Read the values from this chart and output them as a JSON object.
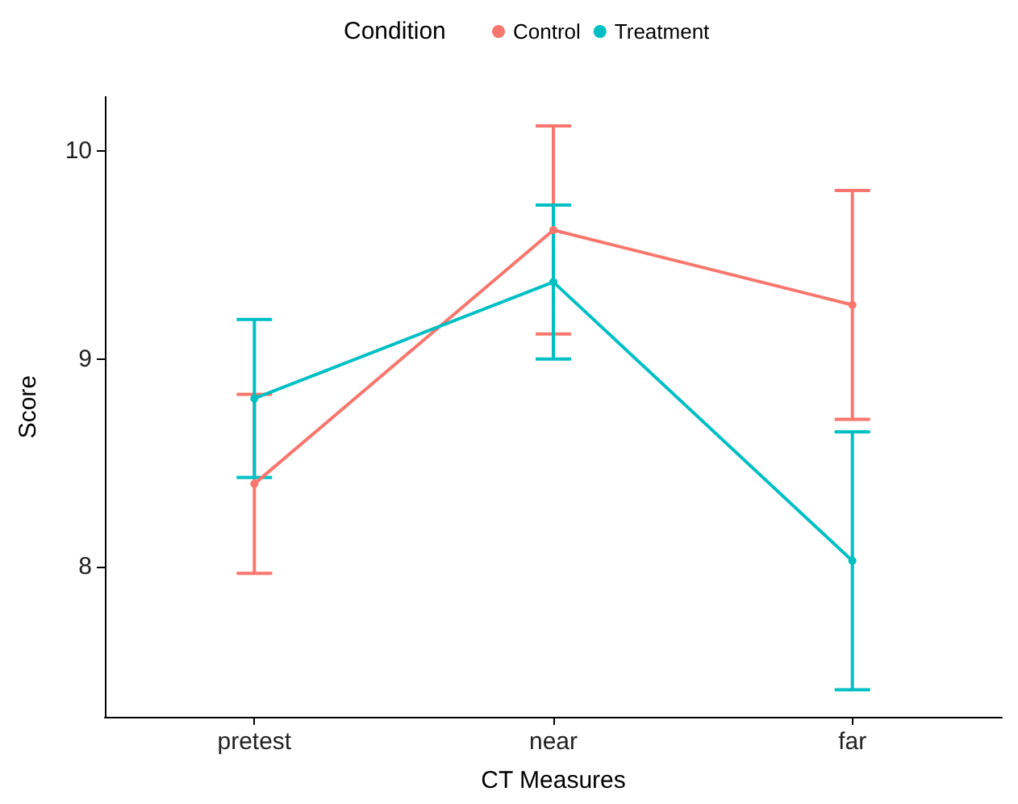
{
  "chart_data": {
    "type": "line",
    "xlabel": "CT Measures",
    "ylabel": "Score",
    "legend_title": "Condition",
    "categories": [
      "pretest",
      "near",
      "far"
    ],
    "series": [
      {
        "name": "Control",
        "color": "#f8766d",
        "values": [
          8.4,
          9.62,
          9.26
        ],
        "errors": [
          0.43,
          0.5,
          0.55
        ]
      },
      {
        "name": "Treatment",
        "color": "#00bfc4",
        "values": [
          8.81,
          9.37,
          8.03
        ],
        "errors": [
          0.38,
          0.37,
          0.62
        ]
      }
    ],
    "ylim": [
      7.28,
      10.26
    ],
    "yticks": [
      8,
      9,
      10
    ],
    "grid": false,
    "legend": "top",
    "marker": "circle",
    "line_style": "solid"
  }
}
